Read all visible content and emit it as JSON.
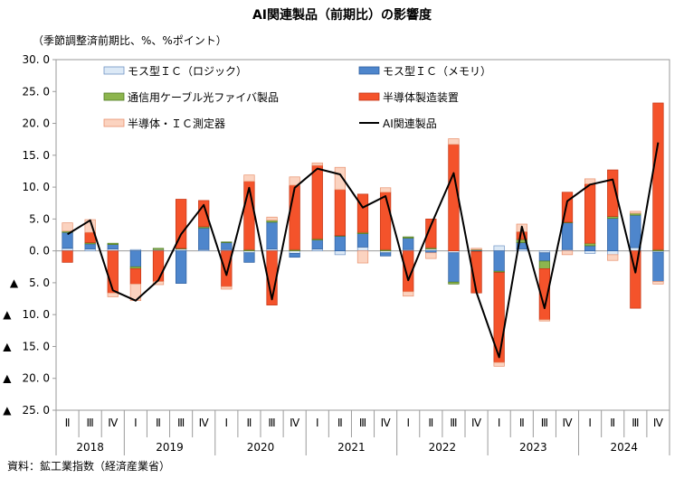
{
  "chart_data": {
    "type": "bar",
    "stacked": true,
    "title": "AI関連製品（前期比）の影響度",
    "ylabel": "（季節調整済前期比、%、%ポイント）",
    "source": "資料：鉱工業指数（経済産業省）",
    "ylim": [
      -25,
      30
    ],
    "yticks": [
      {
        "value": 30,
        "label": "30. 0"
      },
      {
        "value": 25,
        "label": "25. 0"
      },
      {
        "value": 20,
        "label": "20. 0"
      },
      {
        "value": 15,
        "label": "15. 0"
      },
      {
        "value": 10,
        "label": "10. 0"
      },
      {
        "value": 5,
        "label": "5. 0"
      },
      {
        "value": 0,
        "label": "0. 0"
      },
      {
        "value": -5,
        "label": "▲　5. 0"
      },
      {
        "value": -10,
        "label": "▲　10. 0"
      },
      {
        "value": -15,
        "label": "▲　15. 0"
      },
      {
        "value": -20,
        "label": "▲　20. 0"
      },
      {
        "value": -25,
        "label": "▲　25. 0"
      }
    ],
    "legend_position": "top, two columns",
    "years": [
      {
        "label": "2018",
        "count": 3
      },
      {
        "label": "2019",
        "count": 4
      },
      {
        "label": "2020",
        "count": 4
      },
      {
        "label": "2021",
        "count": 4
      },
      {
        "label": "2022",
        "count": 4
      },
      {
        "label": "2023",
        "count": 4
      },
      {
        "label": "2024",
        "count": 4
      }
    ],
    "categories": [
      "Ⅱ",
      "Ⅲ",
      "Ⅳ",
      "Ⅰ",
      "Ⅱ",
      "Ⅲ",
      "Ⅳ",
      "Ⅰ",
      "Ⅱ",
      "Ⅲ",
      "Ⅳ",
      "Ⅰ",
      "Ⅱ",
      "Ⅲ",
      "Ⅳ",
      "Ⅰ",
      "Ⅱ",
      "Ⅲ",
      "Ⅳ",
      "Ⅰ",
      "Ⅱ",
      "Ⅲ",
      "Ⅳ",
      "Ⅰ",
      "Ⅱ",
      "Ⅲ",
      "Ⅳ"
    ],
    "series": [
      {
        "name": "モス型ＩＣ（ロジック）",
        "kind": "bar",
        "color": "#dce9f6",
        "edge": "#6f93c4",
        "values": [
          0.4,
          0.3,
          0.3,
          0.2,
          0.2,
          0.3,
          0.2,
          0.2,
          -0.3,
          0.3,
          -0.4,
          0.3,
          -0.6,
          0.6,
          -0.3,
          0.2,
          0.3,
          -0.3,
          0.1,
          0.8,
          0.3,
          -0.3,
          0.2,
          -0.4,
          -0.6,
          0.5,
          -0.2
        ]
      },
      {
        "name": "モス型ＩＣ（メモリ）",
        "kind": "bar",
        "color": "#4e86cc",
        "edge": "#2f5f9e",
        "values": [
          2.5,
          0.8,
          0.7,
          -2.5,
          0,
          -5.1,
          3.4,
          1.1,
          -1.5,
          4.2,
          -0.6,
          1.4,
          2.3,
          2.1,
          -0.5,
          1.8,
          -0.3,
          -4.6,
          -0.1,
          -3.2,
          1.0,
          -1.3,
          4.2,
          0.8,
          5.1,
          5.1,
          -4.6
        ]
      },
      {
        "name": "通信用ケーブル光ファイバ製品",
        "kind": "bar",
        "color": "#8db54e",
        "edge": "#4f7a20",
        "values": [
          0.2,
          0.2,
          0.2,
          -0.3,
          0.2,
          0.1,
          0.2,
          0.1,
          0.2,
          0.3,
          0.2,
          0.2,
          0.1,
          0.2,
          0.2,
          0.2,
          0.2,
          -0.3,
          0.1,
          -0.2,
          0.5,
          -1.2,
          0.1,
          0.4,
          0.3,
          0.3,
          0.2
        ]
      },
      {
        "name": "半導体製造装置",
        "kind": "bar",
        "color": "#f4532b",
        "edge": "#c33514",
        "values": [
          -1.8,
          1.6,
          -6.6,
          -2.4,
          -4.8,
          7.7,
          4.1,
          -5.6,
          10.7,
          -8.5,
          10.1,
          11.5,
          7.2,
          6.0,
          9.0,
          -6.4,
          4.5,
          16.7,
          -6.5,
          -14.1,
          1.2,
          -8.0,
          4.7,
          9.3,
          7.3,
          -9.0,
          23.0
        ]
      },
      {
        "name": "半導体・ＩＣ測定器",
        "kind": "bar",
        "color": "#fbd3c0",
        "edge": "#e8906c",
        "values": [
          1.3,
          2.0,
          -0.6,
          -2.6,
          -0.5,
          0,
          0,
          -0.4,
          1.0,
          0.5,
          1.3,
          0.4,
          3.5,
          -1.9,
          0.7,
          -0.7,
          -0.9,
          0.9,
          0.2,
          -0.6,
          1.2,
          -0.2,
          -0.6,
          0.8,
          -0.9,
          0.3,
          -0.4
        ]
      },
      {
        "name": "AI関連製品",
        "kind": "line",
        "color": "#000000",
        "values": [
          2.6,
          4.8,
          -6.2,
          -7.8,
          -4.6,
          2.6,
          7.2,
          -3.8,
          9.9,
          -7.6,
          9.9,
          12.9,
          12.0,
          6.8,
          8.6,
          -4.6,
          4.0,
          12.2,
          -6.5,
          -16.7,
          3.8,
          -9.0,
          7.8,
          10.4,
          11.2,
          -3.4,
          17.0
        ]
      }
    ]
  }
}
